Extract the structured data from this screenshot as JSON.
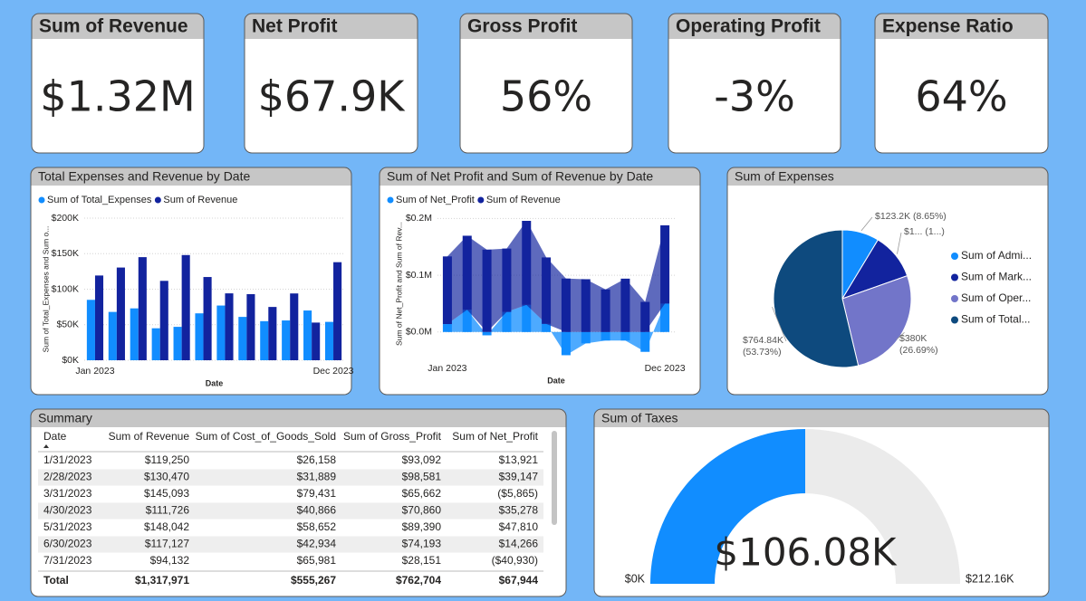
{
  "kpis": [
    {
      "title": "Sum of Revenue",
      "value": "$1.32M"
    },
    {
      "title": "Net Profit",
      "value": "$67.9K"
    },
    {
      "title": "Gross Profit",
      "value": "56%"
    },
    {
      "title": "Operating Profit",
      "value": "-3%"
    },
    {
      "title": "Expense Ratio",
      "value": "64%"
    }
  ],
  "chart_data": [
    {
      "type": "bar",
      "title": "Total Expenses and Revenue by Date",
      "x_label": "Date",
      "y_label": "Sum of Total_Expenses and Sum o...",
      "categories": [
        "Jan 2023",
        null,
        null,
        null,
        null,
        null,
        null,
        null,
        null,
        null,
        null,
        "Dec 2023"
      ],
      "series": [
        {
          "name": "Sum of Total_Expenses",
          "color": "#118DFF",
          "values": [
            85000,
            68000,
            73000,
            45000,
            47000,
            66000,
            77000,
            61000,
            55000,
            56000,
            70000,
            54000
          ]
        },
        {
          "name": "Sum of Revenue",
          "color": "#12239E",
          "values": [
            119250,
            130470,
            145093,
            111726,
            148042,
            117127,
            94132,
            93000,
            75000,
            94000,
            53000,
            138000
          ]
        }
      ],
      "ylim": [
        0,
        200000
      ],
      "yticks": [
        {
          "value": 0,
          "label": "$0K"
        },
        {
          "value": 50000,
          "label": "$50K"
        },
        {
          "value": 100000,
          "label": "$100K"
        },
        {
          "value": 150000,
          "label": "$150K"
        },
        {
          "value": 200000,
          "label": "$200K"
        }
      ],
      "grid": true
    },
    {
      "type": "area",
      "stacked": true,
      "title": "Sum of Net Profit and Sum of Revenue by Date",
      "x_label": "Date",
      "y_label": "Sum of Net_Profit and Sum of Rev...",
      "categories": [
        "Jan 2023",
        null,
        null,
        null,
        null,
        null,
        null,
        null,
        null,
        null,
        null,
        "Dec 2023"
      ],
      "series": [
        {
          "name": "Sum of Net_Profit",
          "color": "#118DFF",
          "values": [
            13921,
            39147,
            -5865,
            35278,
            47810,
            14266,
            -40930,
            -20000,
            -15000,
            -15000,
            -35000,
            50000
          ]
        },
        {
          "name": "Sum of Revenue",
          "color": "#12239E",
          "values": [
            119250,
            130470,
            145093,
            111726,
            148042,
            117127,
            94132,
            93000,
            75000,
            94000,
            53000,
            138000
          ]
        }
      ],
      "ylim": [
        -45000,
        215000
      ],
      "yticks": [
        {
          "value": 0,
          "label": "$0.0M"
        },
        {
          "value": 100000,
          "label": "$0.1M"
        },
        {
          "value": 200000,
          "label": "$0.2M"
        }
      ],
      "grid": true
    },
    {
      "type": "pie",
      "title": "Sum of Expenses",
      "categories": [
        "Sum of Admi...",
        "Sum of Mark...",
        "Sum of Oper...",
        "Sum of Total..."
      ],
      "values": [
        123200,
        155600,
        380000,
        764840
      ],
      "value_labels": [
        "$123.2K (8.65%)",
        "$1... (1...)",
        "$380K (26.69%)",
        "$764.84K (53.73%)"
      ],
      "colors": [
        "#118DFF",
        "#12239E",
        "#7275C9",
        "#0E4A7E"
      ]
    },
    {
      "type": "gauge",
      "title": "Sum of Taxes",
      "value": 106080,
      "value_label": "$106.08K",
      "ylim": [
        0,
        212160
      ],
      "yticks": [
        {
          "value": 0,
          "label": "$0K"
        },
        {
          "value": 212160,
          "label": "$212.16K"
        }
      ],
      "color": "#118DFF",
      "track_color": "#EBEBEB"
    }
  ],
  "table": {
    "title": "Summary",
    "columns": [
      "Date",
      "Sum of Revenue",
      "Sum of Cost_of_Goods_Sold",
      "Sum of Gross_Profit",
      "Sum of Net_Profit"
    ],
    "rows": [
      [
        "1/31/2023",
        "$119,250",
        "$26,158",
        "$93,092",
        "$13,921"
      ],
      [
        "2/28/2023",
        "$130,470",
        "$31,889",
        "$98,581",
        "$39,147"
      ],
      [
        "3/31/2023",
        "$145,093",
        "$79,431",
        "$65,662",
        "($5,865)"
      ],
      [
        "4/30/2023",
        "$111,726",
        "$40,866",
        "$70,860",
        "$35,278"
      ],
      [
        "5/31/2023",
        "$148,042",
        "$58,652",
        "$89,390",
        "$47,810"
      ],
      [
        "6/30/2023",
        "$117,127",
        "$42,934",
        "$74,193",
        "$14,266"
      ],
      [
        "7/31/2023",
        "$94,132",
        "$65,981",
        "$28,151",
        "($40,930)"
      ]
    ],
    "total": [
      "Total",
      "$1,317,971",
      "$555,267",
      "$762,704",
      "$67,944"
    ]
  }
}
